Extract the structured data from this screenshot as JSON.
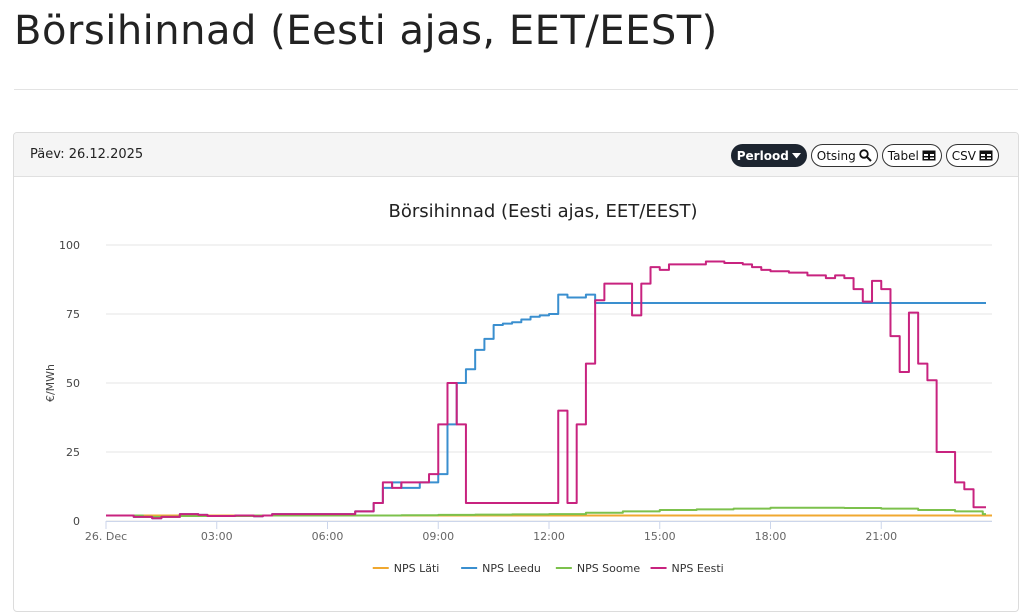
{
  "page": {
    "title": "Börsihinnad (Eesti ajas, EET/EEST)"
  },
  "toolbar": {
    "date_label": "Päev: 26.12.2025",
    "period_label": "Perlood",
    "search_label": "Otsing",
    "table_label": "Tabel",
    "csv_label": "CSV"
  },
  "chart_data": {
    "type": "line",
    "step": true,
    "title": "Börsihinnad (Eesti ajas, EET/EEST)",
    "ylabel": "€/MWh",
    "xlabel": "",
    "ylim": [
      0,
      100
    ],
    "xlim": [
      0,
      24
    ],
    "grid": true,
    "legend_position": "bottom",
    "x_tick_labels": [
      "26. Dec",
      "03:00",
      "06:00",
      "09:00",
      "12:00",
      "15:00",
      "18:00",
      "21:00"
    ],
    "x_tick_values": [
      0,
      3,
      6,
      9,
      12,
      15,
      18,
      21
    ],
    "y_ticks": [
      0,
      25,
      50,
      75,
      100
    ],
    "series": [
      {
        "name": "NPS Läti",
        "color": "#f0a830",
        "x": [
          0,
          24
        ],
        "y": [
          2,
          2
        ]
      },
      {
        "name": "NPS Leedu",
        "color": "#3a8fcf",
        "x": [
          0,
          0.75,
          1.25,
          1.5,
          2.0,
          2.5,
          2.75,
          3.5,
          4.0,
          4.25,
          4.5,
          5.5,
          6.0,
          6.75,
          7.0,
          7.25,
          7.5,
          7.75,
          8.0,
          8.5,
          8.75,
          9.0,
          9.25,
          9.5,
          9.75,
          10.0,
          10.25,
          10.5,
          10.75,
          11.0,
          11.25,
          11.5,
          11.75,
          12.0,
          12.25,
          12.5,
          12.75,
          13.0,
          13.25,
          13.5
        ],
        "y": [
          2,
          1.5,
          1,
          1.5,
          2.5,
          2.2,
          1.8,
          2,
          1.7,
          2,
          2.5,
          2.5,
          2.5,
          3.5,
          3.5,
          6.5,
          12,
          14,
          12,
          14,
          14,
          17,
          35,
          50,
          55,
          62,
          66,
          71,
          71.5,
          72,
          73,
          74,
          74.5,
          75,
          82,
          81,
          81,
          82,
          79,
          79
        ]
      },
      {
        "name": "NPS Soome",
        "color": "#7cc14c",
        "x": [
          0,
          1,
          2,
          3,
          4,
          5,
          6,
          7,
          8,
          9,
          10,
          11,
          12,
          13,
          14,
          15,
          16,
          17,
          18,
          19,
          20,
          21,
          22,
          23,
          23.75
        ],
        "y": [
          2,
          1.5,
          1.8,
          1.8,
          2,
          2,
          2,
          2,
          2.1,
          2.2,
          2.3,
          2.4,
          2.5,
          3,
          3.5,
          4,
          4.2,
          4.5,
          4.8,
          4.8,
          4.7,
          4.5,
          4,
          3.5,
          2.5
        ]
      },
      {
        "name": "NPS Eesti",
        "color": "#c8237f",
        "x": [
          0,
          0.75,
          1.25,
          1.5,
          2.0,
          2.5,
          2.75,
          3.5,
          4.0,
          4.25,
          4.5,
          5.5,
          6.0,
          6.75,
          7.0,
          7.25,
          7.5,
          7.75,
          8.0,
          8.5,
          8.75,
          9.0,
          9.25,
          9.5,
          9.75,
          12.25,
          12.5,
          12.75,
          13.0,
          13.25,
          13.5,
          13.75,
          14.25,
          14.5,
          14.75,
          15.0,
          15.25,
          15.5,
          16.25,
          16.75,
          17.25,
          17.5,
          17.75,
          18.0,
          18.5,
          19.0,
          19.5,
          19.75,
          20.0,
          20.25,
          20.5,
          20.75,
          21.0,
          21.25,
          21.5,
          21.75,
          22.0,
          22.25,
          22.5,
          22.75,
          23.0,
          23.25,
          23.5,
          23.75
        ],
        "y": [
          2,
          1.5,
          1,
          1.5,
          2.5,
          2.2,
          1.8,
          2,
          1.7,
          2,
          2.5,
          2.5,
          2.5,
          3.5,
          3.5,
          6.5,
          14,
          12,
          14,
          14,
          17,
          35,
          50,
          35,
          6.5,
          40,
          6.5,
          35,
          57,
          80,
          86,
          86,
          74.5,
          86,
          92,
          91,
          93,
          93,
          94,
          93.5,
          93,
          92,
          91,
          90.5,
          90,
          89,
          88,
          89,
          88,
          84,
          79.5,
          87,
          84,
          67,
          54,
          75.5,
          57,
          51,
          25,
          25,
          14,
          11.5,
          5,
          5
        ]
      }
    ]
  }
}
